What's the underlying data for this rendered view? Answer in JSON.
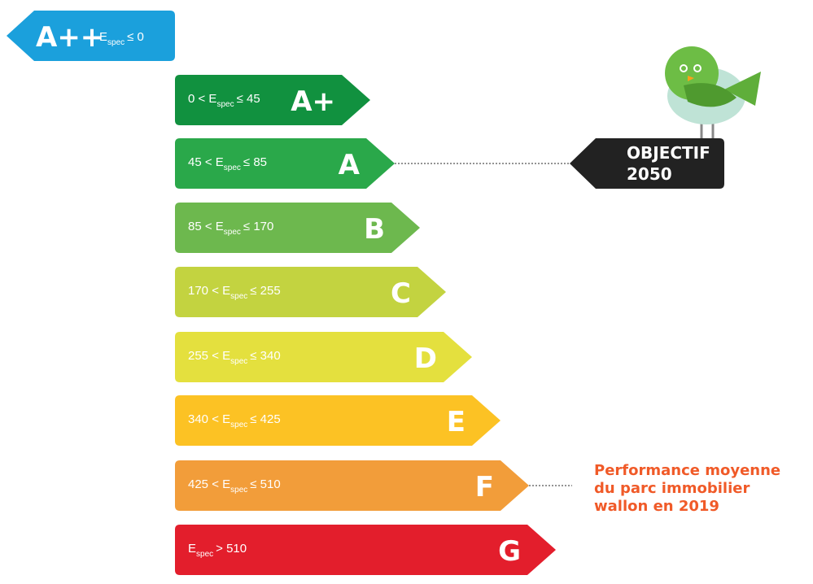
{
  "top_band": {
    "grade": "A++",
    "left": "E",
    "sub": "spec",
    "right": "≤ 0"
  },
  "bands": [
    {
      "grade": "A+",
      "left": "0 < E",
      "sub": "spec",
      "right": "≤ 45"
    },
    {
      "grade": "A",
      "left": "45 < E",
      "sub": "spec",
      "right": "≤ 85"
    },
    {
      "grade": "B",
      "left": "85 < E",
      "sub": "spec",
      "right": "≤ 170"
    },
    {
      "grade": "C",
      "left": "170 < E",
      "sub": "spec",
      "right": "≤ 255"
    },
    {
      "grade": "D",
      "left": "255 < E",
      "sub": "spec",
      "right": "≤ 340"
    },
    {
      "grade": "E",
      "left": "340 < E",
      "sub": "spec",
      "right": "≤ 425"
    },
    {
      "grade": "F",
      "left": "425 < E",
      "sub": "spec",
      "right": "≤ 510"
    },
    {
      "grade": "G",
      "left": "E",
      "sub": "spec",
      "right": "> 510"
    }
  ],
  "objective": {
    "lines": [
      "OBJECTIF",
      "2050"
    ]
  },
  "note": {
    "lines": [
      "Performance moyenne",
      "du parc immobilier",
      "wallon en 2019"
    ]
  }
}
